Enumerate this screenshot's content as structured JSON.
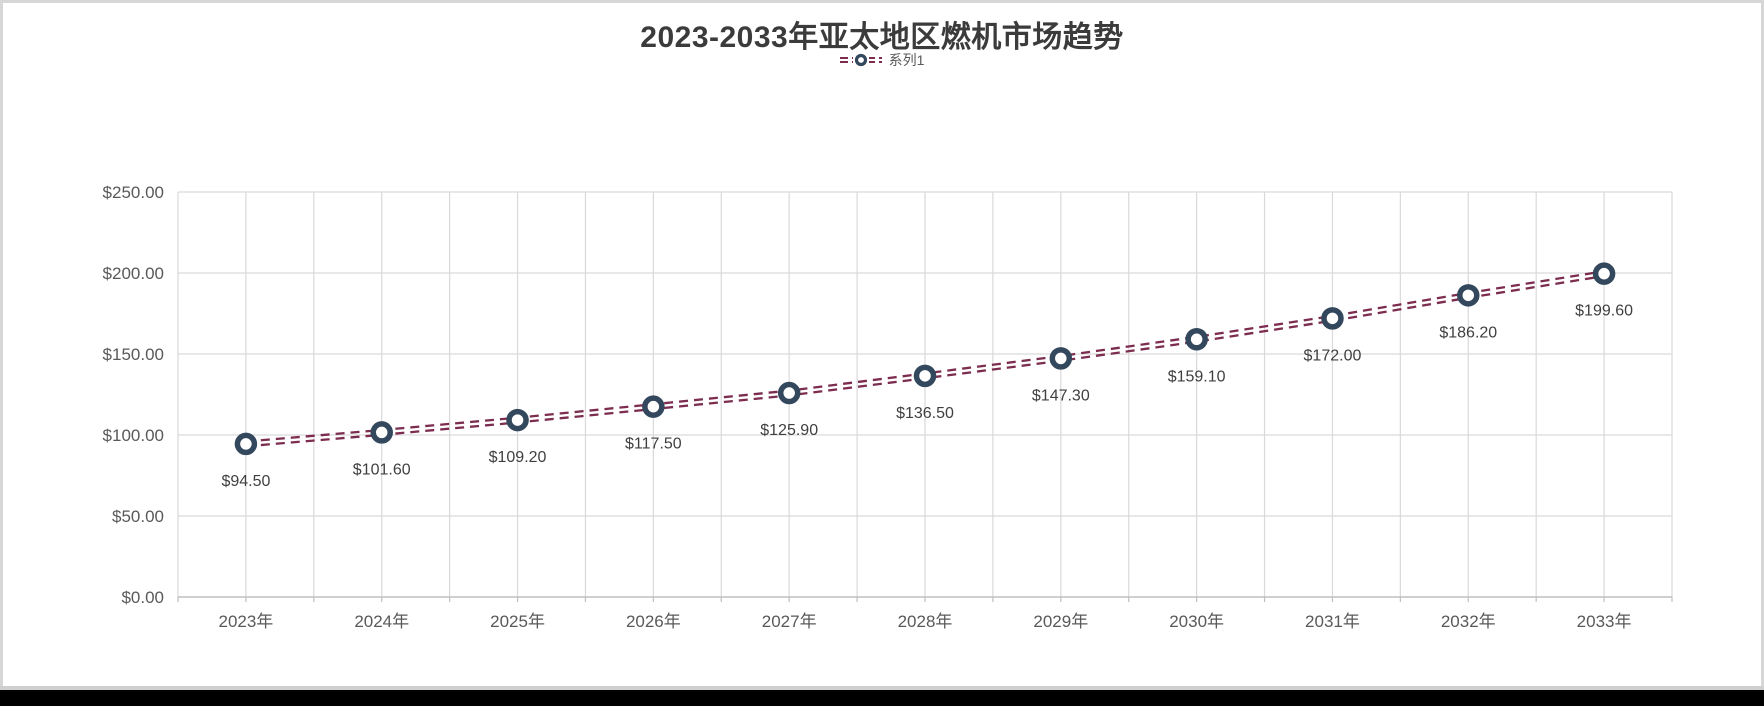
{
  "chart_data": {
    "type": "line",
    "title": "2023-2033年亚太地区燃机市场趋势",
    "legend": {
      "position": "top",
      "entries": [
        "系列1"
      ]
    },
    "categories": [
      "2023年",
      "2024年",
      "2025年",
      "2026年",
      "2027年",
      "2028年",
      "2029年",
      "2030年",
      "2031年",
      "2032年",
      "2033年"
    ],
    "series": [
      {
        "name": "系列1",
        "values": [
          94.5,
          101.6,
          109.2,
          117.5,
          125.9,
          136.5,
          147.3,
          159.1,
          172.0,
          186.2,
          199.6
        ]
      }
    ],
    "data_labels": [
      "$94.50",
      "$101.60",
      "$109.20",
      "$117.50",
      "$125.90",
      "$136.50",
      "$147.30",
      "$159.10",
      "$172.00",
      "$186.20",
      "$199.60"
    ],
    "y_axis": {
      "min": 0,
      "max": 250,
      "step": 50,
      "ticks": [
        "$0.00",
        "$50.00",
        "$100.00",
        "$150.00",
        "$200.00",
        "$250.00"
      ]
    },
    "grid": {
      "horizontal": true,
      "vertical": true
    },
    "line_style": "double-dash",
    "marker_style": "open-circle",
    "colors": {
      "line": "#7C2D4F",
      "marker_ring": "#33475D",
      "marker_fill": "#FFFFFF",
      "grid": "#D9D9D9",
      "axis_line": "#BFBFBF",
      "title_text": "#3B3B3B",
      "axis_text": "#595959",
      "data_label_text": "#3F3F3F",
      "bottom_bar": "#000000"
    }
  }
}
